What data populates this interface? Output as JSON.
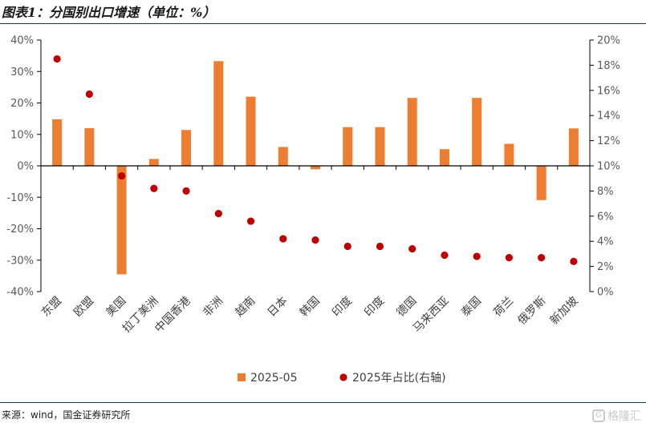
{
  "header": {
    "title": "图表1：分国别出口增速（单位：%）"
  },
  "footer": {
    "source": "来源：wind，国金证券研究所",
    "watermark": "格隆汇"
  },
  "colors": {
    "bar": "#ED7D31",
    "dot": "#C00000",
    "axis": "#000000",
    "rule": "#1F3B57"
  },
  "chart_data": {
    "type": "bar",
    "categories": [
      "东盟",
      "欧盟",
      "美国",
      "拉丁美洲",
      "中国香港",
      "非洲",
      "越南",
      "日本",
      "韩国",
      "印度",
      "印度",
      "德国",
      "马来西亚",
      "泰国",
      "荷兰",
      "俄罗斯",
      "新加坡"
    ],
    "series": [
      {
        "name": "2025-05",
        "type": "bar",
        "axis": "left",
        "values": [
          14.8,
          12.0,
          -34.5,
          2.2,
          11.4,
          33.3,
          22.0,
          6.0,
          -1.1,
          12.3,
          12.3,
          21.6,
          5.3,
          21.6,
          7.0,
          -10.9,
          11.9
        ]
      },
      {
        "name": "2025年占比(右轴)",
        "type": "scatter",
        "axis": "right",
        "values": [
          18.5,
          15.7,
          9.2,
          8.2,
          8.0,
          6.2,
          5.6,
          4.2,
          4.1,
          3.6,
          3.6,
          3.4,
          2.9,
          2.8,
          2.7,
          2.7,
          2.4
        ]
      }
    ],
    "y_left": {
      "min": -40,
      "max": 40,
      "step": 10,
      "ticks": [
        "40%",
        "30%",
        "20%",
        "10%",
        "0%",
        "-10%",
        "-20%",
        "-30%",
        "-40%"
      ]
    },
    "y_right": {
      "min": 0,
      "max": 20,
      "step": 2,
      "ticks": [
        "20%",
        "18%",
        "16%",
        "14%",
        "12%",
        "10%",
        "8%",
        "6%",
        "4%",
        "2%",
        "0%"
      ]
    },
    "legend": {
      "position": "bottom",
      "items": [
        {
          "label": "2025-05",
          "shape": "square"
        },
        {
          "label": "2025年占比(右轴)",
          "shape": "circle"
        }
      ]
    },
    "grid": false
  }
}
